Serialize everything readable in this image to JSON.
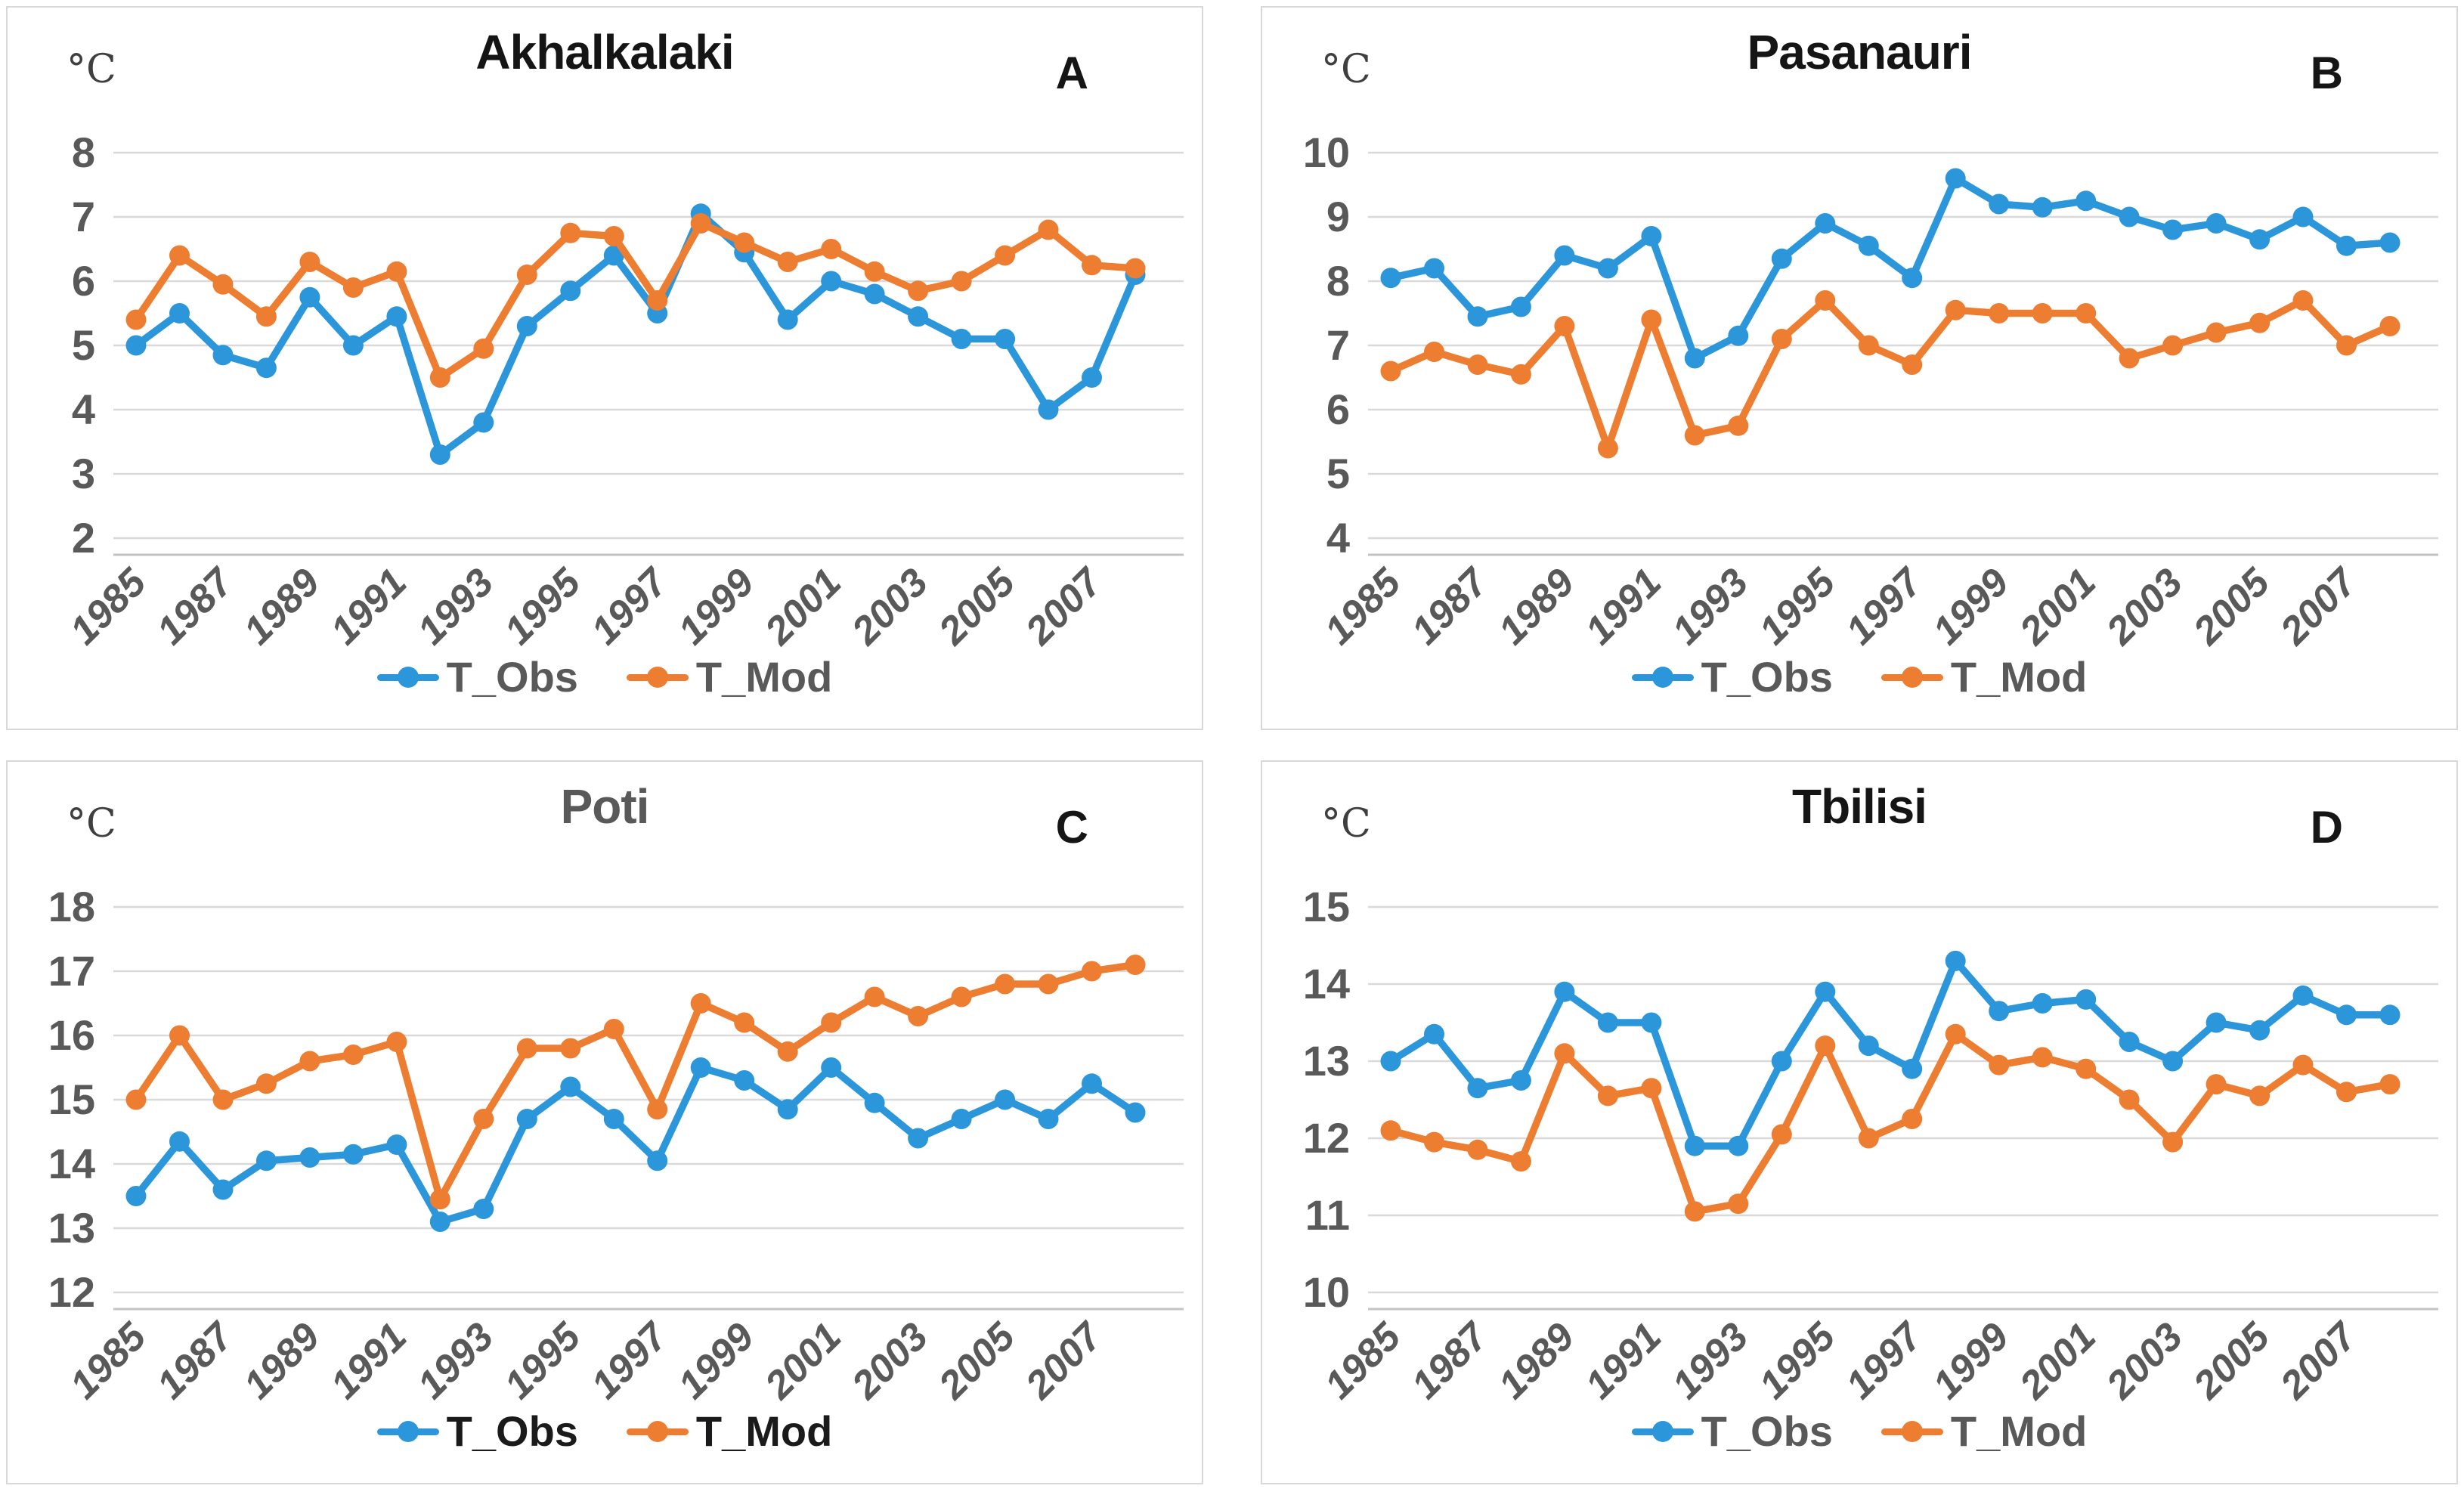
{
  "colors": {
    "obs": "#2B96D9",
    "mod": "#ED7D31",
    "grid": "#d9d9d9",
    "axis": "#c3c3c3",
    "tick_text": "#595959",
    "title_dark": "#151515",
    "title_gray": "#595959"
  },
  "legend": {
    "obs_label": "T_Obs",
    "mod_label": "T_Mod"
  },
  "chart_data": [
    {
      "type": "line",
      "panel_letter": "A",
      "title": "Akhalkalaki",
      "title_color": "#151515",
      "legend_text_color": "#595959",
      "unit": "°C",
      "ylim": [
        2,
        8
      ],
      "yticks": [
        8,
        7,
        6,
        5,
        4,
        3,
        2
      ],
      "grid": true,
      "legend_position": "bottom",
      "x": [
        1985,
        1986,
        1987,
        1988,
        1989,
        1990,
        1991,
        1992,
        1993,
        1994,
        1995,
        1996,
        1997,
        1998,
        1999,
        2000,
        2001,
        2002,
        2003,
        2004,
        2005,
        2006,
        2007,
        2008
      ],
      "x_tick_labels": [
        "1985",
        "1987",
        "1989",
        "1991",
        "1993",
        "1995",
        "1997",
        "1999",
        "2001",
        "2003",
        "2005",
        "2007"
      ],
      "series": [
        {
          "name": "T_Obs",
          "color": "#2B96D9",
          "values": [
            5.0,
            5.5,
            4.85,
            4.65,
            5.75,
            5.0,
            5.45,
            3.3,
            3.8,
            5.3,
            5.85,
            6.4,
            5.5,
            7.05,
            6.45,
            5.4,
            6.0,
            5.8,
            5.45,
            5.1,
            5.1,
            4.0,
            4.5,
            6.1
          ]
        },
        {
          "name": "T_Mod",
          "color": "#ED7D31",
          "values": [
            5.4,
            6.4,
            5.95,
            5.45,
            6.3,
            5.9,
            6.15,
            4.5,
            4.95,
            6.1,
            6.75,
            6.7,
            5.7,
            6.9,
            6.6,
            6.3,
            6.5,
            6.15,
            5.85,
            6.0,
            6.4,
            6.8,
            6.25,
            6.2
          ]
        }
      ]
    },
    {
      "type": "line",
      "panel_letter": "B",
      "title": "Pasanauri",
      "title_color": "#151515",
      "legend_text_color": "#595959",
      "unit": "°C",
      "ylim": [
        4,
        10
      ],
      "yticks": [
        10,
        9,
        8,
        7,
        6,
        5,
        4
      ],
      "grid": true,
      "legend_position": "bottom",
      "x": [
        1985,
        1986,
        1987,
        1988,
        1989,
        1990,
        1991,
        1992,
        1993,
        1994,
        1995,
        1996,
        1997,
        1998,
        1999,
        2000,
        2001,
        2002,
        2003,
        2004,
        2005,
        2006,
        2007,
        2008
      ],
      "x_tick_labels": [
        "1985",
        "1987",
        "1989",
        "1991",
        "1993",
        "1995",
        "1997",
        "1999",
        "2001",
        "2003",
        "2005",
        "2007"
      ],
      "series": [
        {
          "name": "T_Obs",
          "color": "#2B96D9",
          "values": [
            8.05,
            8.2,
            7.45,
            7.6,
            8.4,
            8.2,
            8.7,
            6.8,
            7.15,
            8.35,
            8.9,
            8.55,
            8.05,
            9.6,
            9.2,
            9.15,
            9.25,
            9.0,
            8.8,
            8.9,
            8.65,
            9.0,
            8.55,
            8.6
          ]
        },
        {
          "name": "T_Mod",
          "color": "#ED7D31",
          "values": [
            6.6,
            6.9,
            6.7,
            6.55,
            7.3,
            5.4,
            7.4,
            5.6,
            5.75,
            7.1,
            7.7,
            7.0,
            6.7,
            7.55,
            7.5,
            7.5,
            7.5,
            6.8,
            7.0,
            7.2,
            7.35,
            7.7,
            7.0,
            7.3
          ]
        }
      ]
    },
    {
      "type": "line",
      "panel_letter": "C",
      "title": "Poti",
      "title_color": "#595959",
      "legend_text_color": "#1a1a1a",
      "unit": "°C",
      "ylim": [
        12,
        18
      ],
      "yticks": [
        18,
        17,
        16,
        15,
        14,
        13,
        12
      ],
      "grid": true,
      "legend_position": "bottom",
      "x": [
        1985,
        1986,
        1987,
        1988,
        1989,
        1990,
        1991,
        1992,
        1993,
        1994,
        1995,
        1996,
        1997,
        1998,
        1999,
        2000,
        2001,
        2002,
        2003,
        2004,
        2005,
        2006,
        2007,
        2008
      ],
      "x_tick_labels": [
        "1985",
        "1987",
        "1989",
        "1991",
        "1993",
        "1995",
        "1997",
        "1999",
        "2001",
        "2003",
        "2005",
        "2007"
      ],
      "series": [
        {
          "name": "T_Obs",
          "color": "#2B96D9",
          "values": [
            13.5,
            14.35,
            13.6,
            14.05,
            14.1,
            14.15,
            14.3,
            13.1,
            13.3,
            14.7,
            15.2,
            14.7,
            14.05,
            15.5,
            15.3,
            14.85,
            15.5,
            14.95,
            14.4,
            14.7,
            15.0,
            14.7,
            15.25,
            14.8
          ]
        },
        {
          "name": "T_Mod",
          "color": "#ED7D31",
          "values": [
            15.0,
            16.0,
            15.0,
            15.25,
            15.6,
            15.7,
            15.9,
            13.45,
            14.7,
            15.8,
            15.8,
            16.1,
            14.85,
            16.5,
            16.2,
            15.75,
            16.2,
            16.6,
            16.3,
            16.6,
            16.8,
            16.8,
            17.0,
            17.1
          ]
        }
      ]
    },
    {
      "type": "line",
      "panel_letter": "D",
      "title": "Tbilisi",
      "title_color": "#151515",
      "legend_text_color": "#595959",
      "unit": "°C",
      "ylim": [
        10,
        15
      ],
      "yticks": [
        15,
        14,
        13,
        12,
        11,
        10
      ],
      "grid": true,
      "legend_position": "bottom",
      "x": [
        1985,
        1986,
        1987,
        1988,
        1989,
        1990,
        1991,
        1992,
        1993,
        1994,
        1995,
        1996,
        1997,
        1998,
        1999,
        2000,
        2001,
        2002,
        2003,
        2004,
        2005,
        2006,
        2007,
        2008
      ],
      "x_tick_labels": [
        "1985",
        "1987",
        "1989",
        "1991",
        "1993",
        "1995",
        "1997",
        "1999",
        "2001",
        "2003",
        "2005",
        "2007"
      ],
      "series": [
        {
          "name": "T_Obs",
          "color": "#2B96D9",
          "values": [
            13.0,
            13.35,
            12.65,
            12.75,
            13.9,
            13.5,
            13.5,
            11.9,
            11.9,
            13.0,
            13.9,
            13.2,
            12.9,
            14.3,
            13.65,
            13.75,
            13.8,
            13.25,
            13.0,
            13.5,
            13.4,
            13.85,
            13.6,
            13.6
          ]
        },
        {
          "name": "T_Mod",
          "color": "#ED7D31",
          "values": [
            12.1,
            11.95,
            11.85,
            11.7,
            13.1,
            12.55,
            12.65,
            11.05,
            11.15,
            12.05,
            13.2,
            12.0,
            12.25,
            13.35,
            12.95,
            13.05,
            12.9,
            12.5,
            11.95,
            12.7,
            12.55,
            12.95,
            12.6,
            12.7
          ]
        }
      ]
    }
  ]
}
